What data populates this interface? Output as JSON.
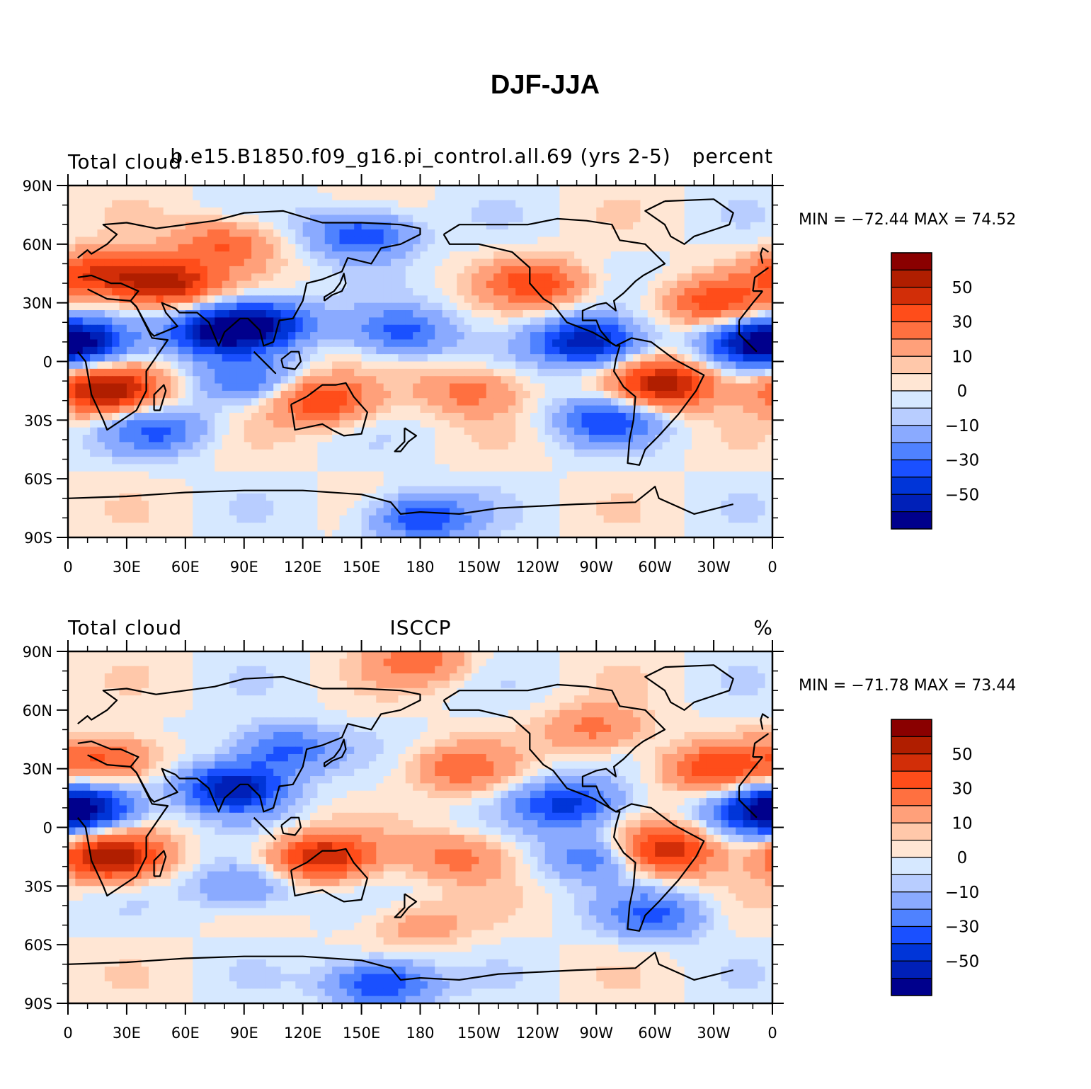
{
  "title": "DJF-JJA",
  "panels": [
    {
      "left_label": "Total cloud",
      "center_label": "b.e15.B1850.f09_g16.pi_control.all.69 (yrs 2-5)",
      "right_label": "percent",
      "min_max": "MIN = −72.44  MAX =   74.52",
      "lat_ticks": [
        "90N",
        "60N",
        "30N",
        "0",
        "30S",
        "60S",
        "90S"
      ],
      "lon_ticks": [
        "0",
        "30E",
        "60E",
        "90E",
        "120E",
        "150E",
        "180",
        "150W",
        "120W",
        "90W",
        "60W",
        "30W",
        "0"
      ]
    },
    {
      "left_label": "Total cloud",
      "center_label": "ISCCP",
      "right_label": "%",
      "min_max": "MIN = −71.78  MAX =   73.44",
      "lat_ticks": [
        "90N",
        "60N",
        "30N",
        "0",
        "30S",
        "60S",
        "90S"
      ],
      "lon_ticks": [
        "0",
        "30E",
        "60E",
        "90E",
        "120E",
        "150E",
        "180",
        "150W",
        "120W",
        "90W",
        "60W",
        "30W",
        "0"
      ]
    }
  ],
  "colorbar": {
    "colors": [
      "#00008c",
      "#0020b8",
      "#0035d8",
      "#1a50ff",
      "#4f82ff",
      "#8aaaff",
      "#b8cdff",
      "#d6e8ff",
      "#ffe6d4",
      "#ffc8aa",
      "#ffa07a",
      "#ff7040",
      "#ff4d1a",
      "#d22e08",
      "#b01e00",
      "#8a0000"
    ],
    "labels": [
      "−50",
      "−30",
      "−10",
      "0",
      "10",
      "30",
      "50"
    ]
  },
  "chart_data": [
    {
      "type": "heatmap",
      "title": "DJF-JJA",
      "variable": "Total cloud",
      "source": "b.e15.B1850.f09_g16.pi_control.all.69 (yrs 2-5)",
      "units": "percent",
      "min": -72.44,
      "max": 74.52,
      "x_range": [
        0,
        360
      ],
      "y_range": [
        -90,
        90
      ],
      "contour_levels": [
        -70,
        -60,
        -50,
        -40,
        -30,
        -20,
        -10,
        -5,
        0,
        5,
        10,
        20,
        30,
        40,
        50,
        60,
        70
      ],
      "features": [
        {
          "lon": 20,
          "lat": -15,
          "value": 60
        },
        {
          "lon": 50,
          "lat": 40,
          "value": 55
        },
        {
          "lon": 15,
          "lat": 45,
          "value": 40
        },
        {
          "lon": 130,
          "lat": -20,
          "value": 40
        },
        {
          "lon": 305,
          "lat": -12,
          "value": 55
        },
        {
          "lon": 240,
          "lat": 40,
          "value": 35
        },
        {
          "lon": 330,
          "lat": 30,
          "value": 35
        },
        {
          "lon": 205,
          "lat": -15,
          "value": 25
        },
        {
          "lon": 80,
          "lat": 60,
          "value": 30
        },
        {
          "lon": 75,
          "lat": 15,
          "value": -55
        },
        {
          "lon": 100,
          "lat": 20,
          "value": -50
        },
        {
          "lon": 265,
          "lat": 10,
          "value": -60
        },
        {
          "lon": 10,
          "lat": 10,
          "value": -45
        },
        {
          "lon": 350,
          "lat": 10,
          "value": -45
        },
        {
          "lon": 170,
          "lat": 15,
          "value": -35
        },
        {
          "lon": 90,
          "lat": -10,
          "value": -25
        },
        {
          "lon": 275,
          "lat": -30,
          "value": -35
        },
        {
          "lon": 45,
          "lat": -35,
          "value": -30
        },
        {
          "lon": 180,
          "lat": -80,
          "value": -40
        },
        {
          "lon": 150,
          "lat": 65,
          "value": -40
        }
      ]
    },
    {
      "type": "heatmap",
      "title": "DJF-JJA",
      "variable": "Total cloud",
      "source": "ISCCP",
      "units": "%",
      "min": -71.78,
      "max": 73.44,
      "x_range": [
        0,
        360
      ],
      "y_range": [
        -90,
        90
      ],
      "contour_levels": [
        -70,
        -60,
        -50,
        -40,
        -30,
        -20,
        -10,
        -5,
        0,
        5,
        10,
        20,
        30,
        40,
        50,
        60,
        70
      ],
      "features": [
        {
          "lon": 22,
          "lat": -15,
          "value": 60
        },
        {
          "lon": 130,
          "lat": -15,
          "value": 50
        },
        {
          "lon": 305,
          "lat": -12,
          "value": 50
        },
        {
          "lon": 20,
          "lat": 35,
          "value": 35
        },
        {
          "lon": 330,
          "lat": 30,
          "value": 35
        },
        {
          "lon": 200,
          "lat": 30,
          "value": 25
        },
        {
          "lon": 270,
          "lat": 50,
          "value": 25
        },
        {
          "lon": 180,
          "lat": 85,
          "value": 25
        },
        {
          "lon": 200,
          "lat": -15,
          "value": 25
        },
        {
          "lon": 180,
          "lat": -50,
          "value": 15
        },
        {
          "lon": 85,
          "lat": 20,
          "value": -60
        },
        {
          "lon": 110,
          "lat": 40,
          "value": -35
        },
        {
          "lon": 10,
          "lat": 10,
          "value": -45
        },
        {
          "lon": 355,
          "lat": 8,
          "value": -40
        },
        {
          "lon": 255,
          "lat": 12,
          "value": -45
        },
        {
          "lon": 270,
          "lat": -15,
          "value": -30
        },
        {
          "lon": 90,
          "lat": -30,
          "value": -25
        },
        {
          "lon": 160,
          "lat": -80,
          "value": -45
        },
        {
          "lon": 300,
          "lat": -45,
          "value": -30
        }
      ]
    }
  ]
}
